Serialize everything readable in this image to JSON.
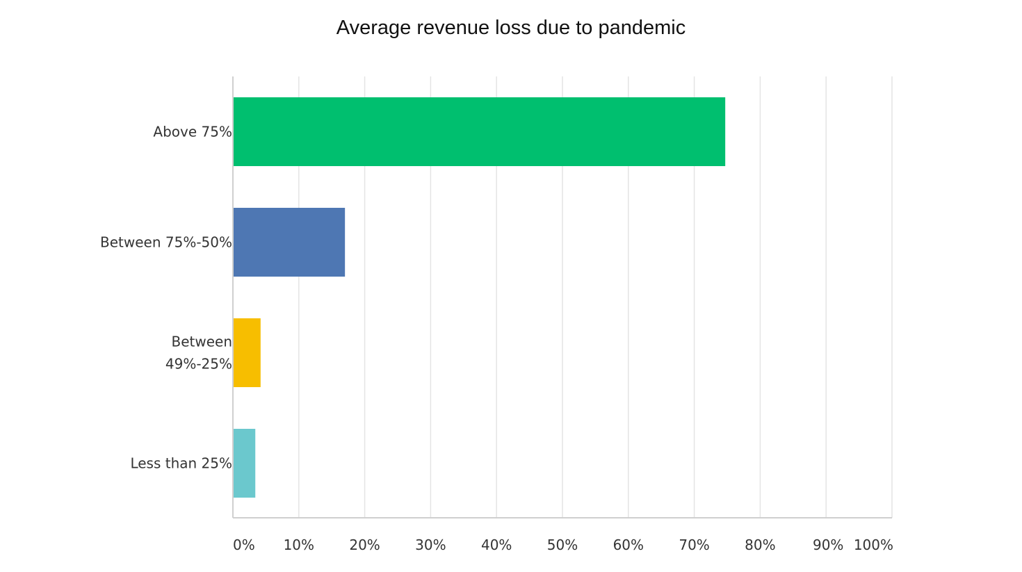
{
  "chart_data": {
    "type": "bar",
    "orientation": "horizontal",
    "title": "Average revenue loss due to pandemic",
    "xlabel": "",
    "ylabel": "",
    "categories": [
      [
        "Above 75%"
      ],
      [
        "Between 75%-50%"
      ],
      [
        "Between",
        "49%-25%"
      ],
      [
        "Less than 25%"
      ]
    ],
    "values": [
      74.7,
      17.0,
      4.2,
      3.4
    ],
    "colors": [
      "#00BF6F",
      "#4E77B3",
      "#F7BE00",
      "#6BC8CD"
    ],
    "xlim": [
      0,
      100
    ],
    "x_ticks": [
      0,
      10,
      20,
      30,
      40,
      50,
      60,
      70,
      80,
      90,
      100
    ],
    "x_tick_labels": [
      "0%",
      "10%",
      "20%",
      "30%",
      "40%",
      "50%",
      "60%",
      "70%",
      "80%",
      "90%",
      "100%"
    ],
    "grid": true
  }
}
